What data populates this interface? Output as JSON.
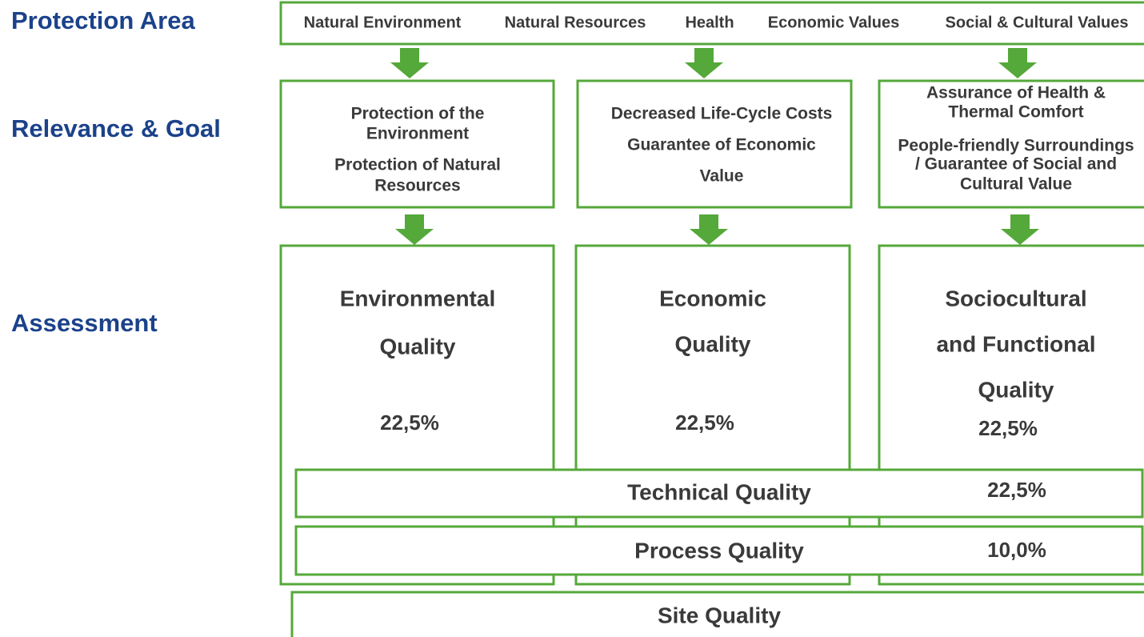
{
  "rows": {
    "protection": "Protection Area",
    "relevance": "Relevance & Goal",
    "assessment": "Assessment"
  },
  "protection_items": [
    "Natural Environment",
    "Natural Resources",
    "Health",
    "Economic Values",
    "Social & Cultural Values"
  ],
  "goals": [
    [
      "Protection of the",
      "Environment",
      "Protection of Natural",
      "Resources"
    ],
    [
      "Decreased Life-Cycle Costs",
      "Guarantee of Economic",
      "Value"
    ],
    [
      "Assurance of Health &",
      "Thermal Comfort",
      "People-friendly Surroundings",
      "/ Guarantee of Social and",
      "Cultural Value"
    ]
  ],
  "qualities": [
    {
      "title": [
        "Environmental",
        "Quality"
      ],
      "weight": "22,5%"
    },
    {
      "title": [
        "Economic",
        "Quality"
      ],
      "weight": "22,5%"
    },
    {
      "title": [
        "Sociocultural",
        "and Functional",
        "Quality"
      ],
      "weight": "22,5%"
    }
  ],
  "technical": {
    "title": "Technical Quality",
    "weight": "22,5%"
  },
  "process": {
    "title": "Process Quality",
    "weight": "10,0%"
  },
  "site": {
    "title": "Site Quality"
  }
}
